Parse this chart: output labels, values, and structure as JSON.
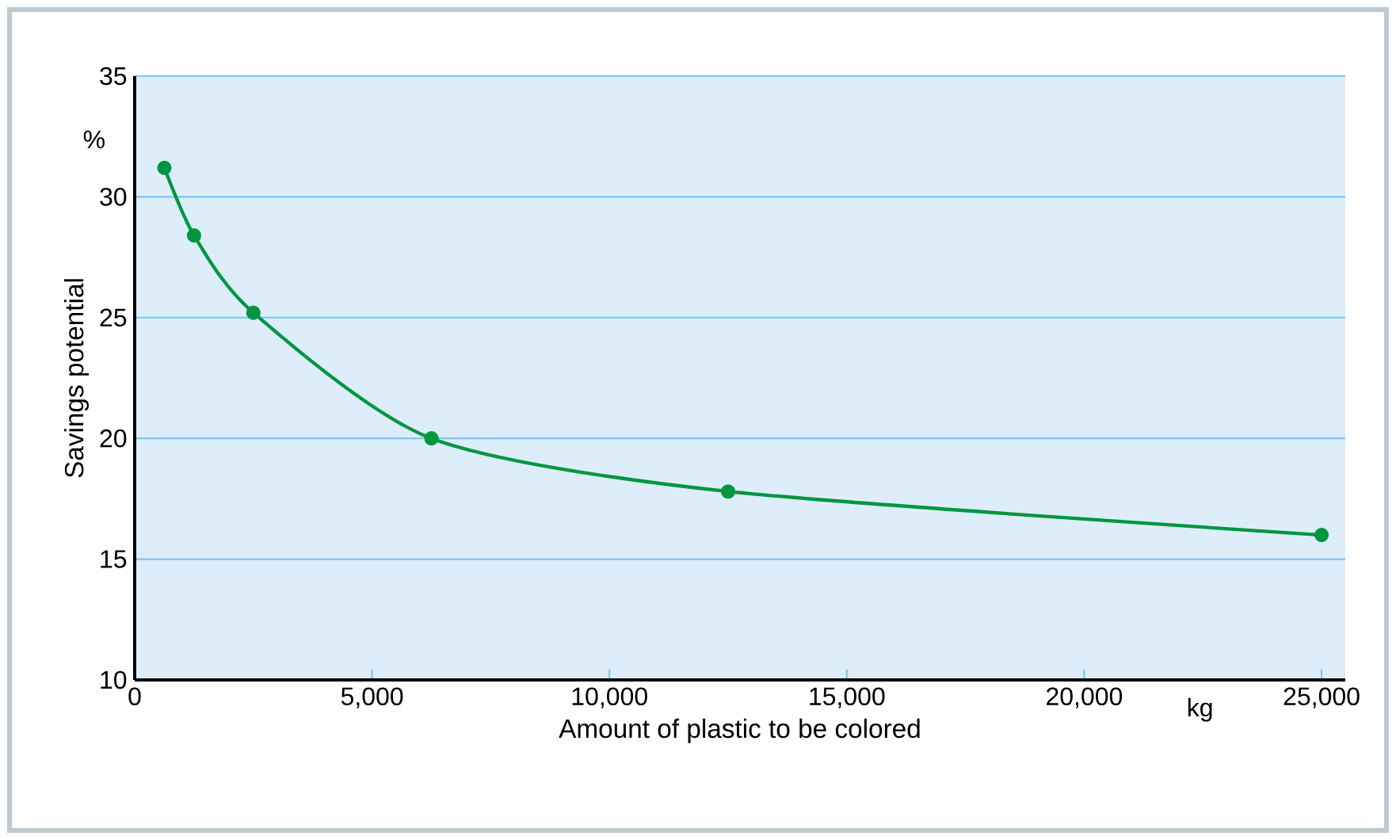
{
  "chart_data": {
    "type": "line",
    "xlabel": "Amount of plastic to be colored",
    "ylabel": "Savings potential",
    "annotations": [
      "%",
      "kg"
    ],
    "series": [
      {
        "color": "#009640",
        "x": [
          625,
          1250,
          2500,
          6250,
          12500,
          25000
        ],
        "values": [
          31.2,
          28.4,
          25.2,
          20.0,
          17.8,
          16.0
        ]
      }
    ],
    "xlim": [
      0,
      25500
    ],
    "xticks": [
      0,
      {
        "value": 5000,
        "label": "5,000"
      },
      {
        "value": 10000,
        "label": "10,000"
      },
      {
        "value": 15000,
        "label": "15,000"
      },
      {
        "value": 20000,
        "label": "20,000"
      },
      {
        "value": 25000,
        "label": "25,000"
      }
    ],
    "ylim": [
      10,
      35
    ],
    "yticks": [
      10,
      15,
      20,
      25,
      30,
      35
    ],
    "grid": "y",
    "marker": "circle",
    "line_style": "solid"
  }
}
